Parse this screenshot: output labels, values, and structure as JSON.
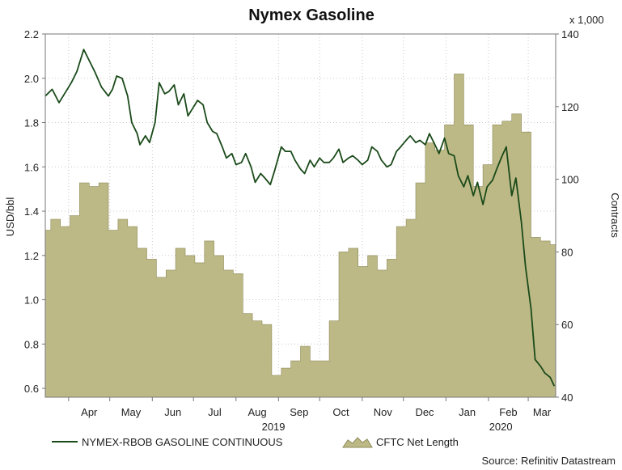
{
  "chart_data": {
    "type": "line",
    "title": "Nymex Gasoline",
    "left_axis": {
      "label": "USD/bbl",
      "ylim": [
        0.56,
        2.2
      ],
      "ticks": [
        "2.2",
        "2.0",
        "1.8",
        "1.6",
        "1.4",
        "1.2",
        "1.0",
        "0.8",
        "0.6"
      ],
      "tick_values": [
        2.2,
        2.0,
        1.8,
        1.6,
        1.4,
        1.2,
        1.0,
        0.8,
        0.6
      ]
    },
    "right_axis": {
      "label": "Contracts",
      "multiplier": "x 1,000",
      "ylim": [
        40,
        140
      ],
      "ticks": [
        "140",
        "120",
        "100",
        "80",
        "60",
        "40"
      ],
      "tick_values": [
        140,
        120,
        100,
        80,
        60,
        40
      ]
    },
    "x_axis": {
      "months": [
        "Apr",
        "May",
        "Jun",
        "Jul",
        "Aug",
        "Sep",
        "Oct",
        "Nov",
        "Dec",
        "Jan",
        "Feb",
        "Mar"
      ],
      "years": [
        "2019",
        "2020"
      ]
    },
    "grid": true,
    "legend_placement": "bottom",
    "colors": {
      "line": "#1a4a1a",
      "area": "#bdb986",
      "area_edge": "#8e8a58"
    },
    "series": [
      {
        "name": "NYMEX-RBOB GASOLINE CONTINUOUS",
        "type": "line",
        "axis": "left",
        "x": [
          "2019-03-15",
          "2019-03-20",
          "2019-03-25",
          "2019-03-28",
          "2019-04-03",
          "2019-04-07",
          "2019-04-12",
          "2019-04-16",
          "2019-04-20",
          "2019-04-25",
          "2019-04-30",
          "2019-05-03",
          "2019-05-06",
          "2019-05-10",
          "2019-05-14",
          "2019-05-17",
          "2019-05-21",
          "2019-05-23",
          "2019-05-27",
          "2019-05-30",
          "2019-06-03",
          "2019-06-06",
          "2019-06-10",
          "2019-06-13",
          "2019-06-17",
          "2019-06-20",
          "2019-06-24",
          "2019-06-27",
          "2019-07-01",
          "2019-07-04",
          "2019-07-08",
          "2019-07-11",
          "2019-07-15",
          "2019-07-18",
          "2019-07-22",
          "2019-07-25",
          "2019-07-29",
          "2019-08-01",
          "2019-08-05",
          "2019-08-08",
          "2019-08-12",
          "2019-08-15",
          "2019-08-19",
          "2019-08-22",
          "2019-08-26",
          "2019-08-29",
          "2019-09-03",
          "2019-09-06",
          "2019-09-10",
          "2019-09-13",
          "2019-09-17",
          "2019-09-20",
          "2019-09-24",
          "2019-09-27",
          "2019-10-01",
          "2019-10-04",
          "2019-10-08",
          "2019-10-11",
          "2019-10-15",
          "2019-10-18",
          "2019-10-22",
          "2019-10-25",
          "2019-10-29",
          "2019-11-01",
          "2019-11-05",
          "2019-11-08",
          "2019-11-12",
          "2019-11-15",
          "2019-11-19",
          "2019-11-22",
          "2019-11-26",
          "2019-11-29",
          "2019-12-03",
          "2019-12-06",
          "2019-12-10",
          "2019-12-13",
          "2019-12-17",
          "2019-12-20",
          "2019-12-24",
          "2019-12-27",
          "2019-12-31",
          "2020-01-03",
          "2020-01-07",
          "2020-01-10",
          "2020-01-14",
          "2020-01-17",
          "2020-01-21",
          "2020-01-24",
          "2020-01-28",
          "2020-01-31",
          "2020-02-04",
          "2020-02-07",
          "2020-02-11",
          "2020-02-14",
          "2020-02-18",
          "2020-02-21",
          "2020-02-25",
          "2020-02-28",
          "2020-03-03",
          "2020-03-06",
          "2020-03-10",
          "2020-03-13",
          "2020-03-17",
          "2020-03-20"
        ],
        "values": [
          1.92,
          1.95,
          1.89,
          1.92,
          1.98,
          2.03,
          2.13,
          2.08,
          2.03,
          1.96,
          1.92,
          1.95,
          2.01,
          2.0,
          1.92,
          1.8,
          1.75,
          1.7,
          1.74,
          1.71,
          1.8,
          1.98,
          1.93,
          1.94,
          1.97,
          1.88,
          1.93,
          1.83,
          1.87,
          1.9,
          1.88,
          1.8,
          1.76,
          1.75,
          1.69,
          1.64,
          1.66,
          1.61,
          1.62,
          1.66,
          1.6,
          1.53,
          1.57,
          1.55,
          1.52,
          1.58,
          1.69,
          1.67,
          1.67,
          1.63,
          1.59,
          1.57,
          1.63,
          1.6,
          1.64,
          1.62,
          1.62,
          1.64,
          1.68,
          1.62,
          1.64,
          1.65,
          1.63,
          1.61,
          1.63,
          1.69,
          1.67,
          1.63,
          1.6,
          1.61,
          1.67,
          1.69,
          1.72,
          1.74,
          1.71,
          1.72,
          1.7,
          1.75,
          1.7,
          1.66,
          1.73,
          1.66,
          1.65,
          1.56,
          1.51,
          1.56,
          1.47,
          1.53,
          1.43,
          1.51,
          1.54,
          1.59,
          1.65,
          1.69,
          1.47,
          1.55,
          1.35,
          1.15,
          0.96,
          0.73,
          0.7,
          0.67,
          0.65,
          0.61
        ]
      },
      {
        "name": "CFTC Net Length",
        "type": "area",
        "axis": "right",
        "x": [
          "2019-03-12",
          "2019-03-19",
          "2019-03-26",
          "2019-04-02",
          "2019-04-09",
          "2019-04-16",
          "2019-04-23",
          "2019-04-30",
          "2019-05-07",
          "2019-05-14",
          "2019-05-21",
          "2019-05-28",
          "2019-06-04",
          "2019-06-11",
          "2019-06-18",
          "2019-06-25",
          "2019-07-02",
          "2019-07-09",
          "2019-07-16",
          "2019-07-23",
          "2019-07-30",
          "2019-08-06",
          "2019-08-13",
          "2019-08-20",
          "2019-08-27",
          "2019-09-03",
          "2019-09-10",
          "2019-09-17",
          "2019-09-24",
          "2019-10-01",
          "2019-10-08",
          "2019-10-15",
          "2019-10-22",
          "2019-10-29",
          "2019-11-05",
          "2019-11-12",
          "2019-11-19",
          "2019-11-26",
          "2019-12-03",
          "2019-12-10",
          "2019-12-17",
          "2019-12-24",
          "2019-12-31",
          "2020-01-07",
          "2020-01-14",
          "2020-01-21",
          "2020-01-28",
          "2020-02-04",
          "2020-02-11",
          "2020-02-18",
          "2020-02-25",
          "2020-03-03",
          "2020-03-10",
          "2020-03-17"
        ],
        "values": [
          86,
          89,
          87,
          90,
          99,
          98,
          99,
          86,
          89,
          87,
          81,
          78,
          73,
          75,
          81,
          79,
          77,
          83,
          79,
          75,
          74,
          63,
          61,
          60,
          46,
          48,
          50,
          54,
          50,
          50,
          61,
          80,
          81,
          76,
          79,
          75,
          78,
          87,
          89,
          99,
          110,
          108,
          115,
          129,
          115,
          98,
          104,
          115,
          116,
          118,
          113,
          84,
          83,
          82
        ]
      }
    ],
    "source": "Source: Refinitiv Datastream"
  }
}
